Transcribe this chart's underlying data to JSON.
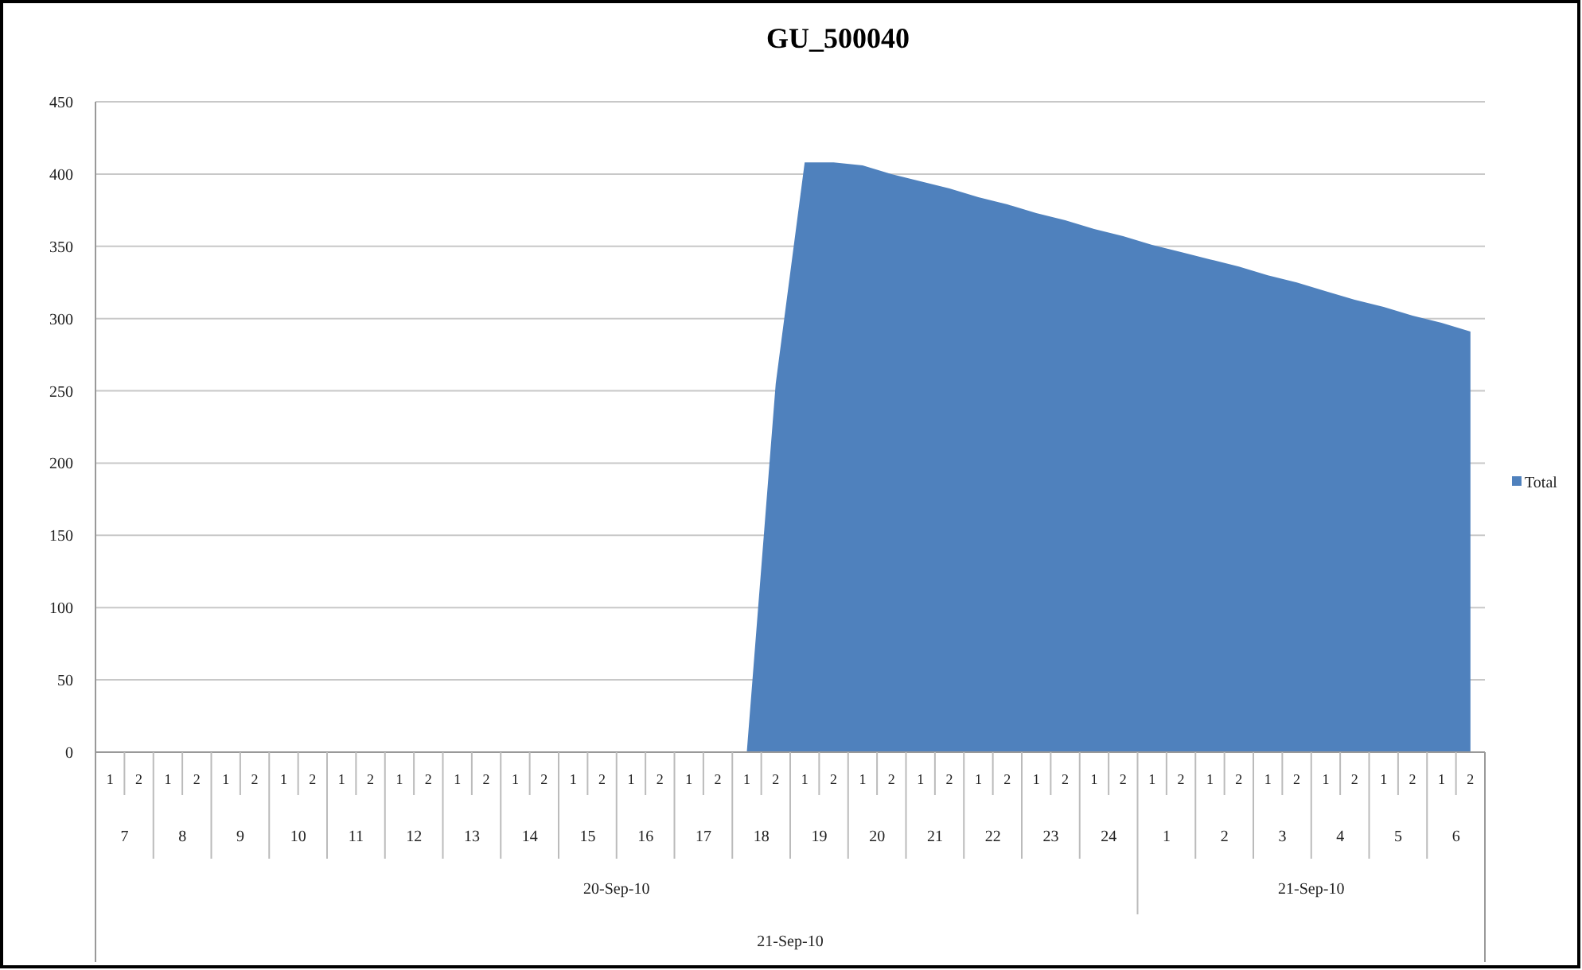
{
  "chart_data": {
    "type": "area",
    "title": "GU_500040",
    "categories": [
      "1",
      "2",
      "1",
      "2",
      "1",
      "2",
      "1",
      "2",
      "1",
      "2",
      "1",
      "2",
      "1",
      "2",
      "1",
      "2",
      "1",
      "2",
      "1",
      "2",
      "1",
      "2",
      "1",
      "2",
      "1",
      "2",
      "1",
      "2",
      "1",
      "2",
      "1",
      "2",
      "1",
      "2",
      "1",
      "2",
      "1",
      "2",
      "1",
      "2",
      "1",
      "2",
      "1",
      "2",
      "1",
      "2",
      "1",
      "2"
    ],
    "series": [
      {
        "name": "Total",
        "color": "#4f81bd",
        "values": [
          0,
          0,
          0,
          0,
          0,
          0,
          0,
          0,
          0,
          0,
          0,
          0,
          0,
          0,
          0,
          0,
          0,
          0,
          0,
          0,
          0,
          0,
          0,
          255,
          408,
          408,
          406,
          400,
          395,
          390,
          384,
          379,
          373,
          368,
          362,
          357,
          351,
          346,
          341,
          336,
          330,
          325,
          319,
          313,
          308,
          302,
          297,
          291
        ]
      }
    ],
    "annotations": [
      "7",
      "8",
      "9",
      "10",
      "11",
      "12",
      "13",
      "14",
      "15",
      "16",
      "17",
      "18",
      "19",
      "20",
      "21",
      "22",
      "23",
      "24",
      "1",
      "2",
      "3",
      "4",
      "5",
      "6",
      "20-Sep-10",
      "21-Sep-10",
      "21-Sep-10"
    ],
    "ylim": [
      0,
      450
    ],
    "yticks": [
      0,
      50,
      100,
      150,
      200,
      250,
      300,
      350,
      400,
      450
    ],
    "grid": "y",
    "legend": "right"
  }
}
